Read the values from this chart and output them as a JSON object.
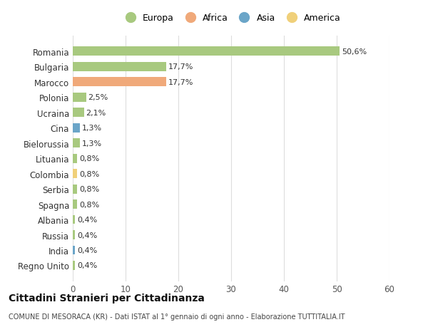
{
  "countries": [
    "Romania",
    "Bulgaria",
    "Marocco",
    "Polonia",
    "Ucraina",
    "Cina",
    "Bielorussia",
    "Lituania",
    "Colombia",
    "Serbia",
    "Spagna",
    "Albania",
    "Russia",
    "India",
    "Regno Unito"
  ],
  "values": [
    50.6,
    17.7,
    17.7,
    2.5,
    2.1,
    1.3,
    1.3,
    0.8,
    0.8,
    0.8,
    0.8,
    0.4,
    0.4,
    0.4,
    0.4
  ],
  "labels": [
    "50,6%",
    "17,7%",
    "17,7%",
    "2,5%",
    "2,1%",
    "1,3%",
    "1,3%",
    "0,8%",
    "0,8%",
    "0,8%",
    "0,8%",
    "0,4%",
    "0,4%",
    "0,4%",
    "0,4%"
  ],
  "continents": [
    "Europa",
    "Europa",
    "Africa",
    "Europa",
    "Europa",
    "Asia",
    "Europa",
    "Europa",
    "America",
    "Europa",
    "Europa",
    "Europa",
    "Europa",
    "Asia",
    "Europa"
  ],
  "colors": {
    "Europa": "#a8c97f",
    "Africa": "#f0a97a",
    "Asia": "#6ba5c8",
    "America": "#f0d07a"
  },
  "legend_order": [
    "Europa",
    "Africa",
    "Asia",
    "America"
  ],
  "bg_color": "#ffffff",
  "grid_color": "#dddddd",
  "title": "Cittadini Stranieri per Cittadinanza",
  "subtitle": "COMUNE DI MESORACA (KR) - Dati ISTAT al 1° gennaio di ogni anno - Elaborazione TUTTITALIA.IT",
  "xlim": [
    0,
    60
  ],
  "xticks": [
    0,
    10,
    20,
    30,
    40,
    50,
    60
  ]
}
